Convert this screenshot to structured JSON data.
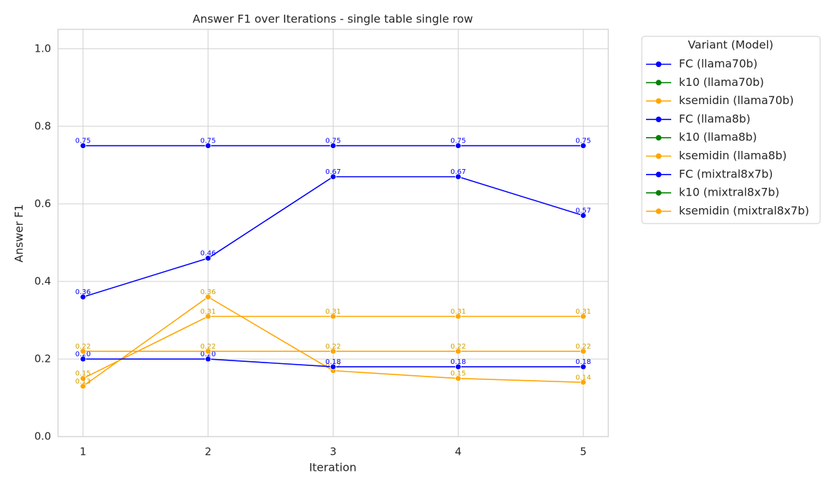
{
  "chart_data": {
    "type": "line",
    "title": "Answer F1 over Iterations - single table single row",
    "x_label": "Iteration",
    "y_label": "Answer F1",
    "x": [
      1,
      2,
      3,
      4,
      5
    ],
    "xlim": [
      0.8,
      5.2
    ],
    "xticks": [
      1,
      2,
      3,
      4,
      5
    ],
    "ylim": [
      0,
      1.05
    ],
    "yticks": [
      {
        "value": 0,
        "label": "0.0"
      },
      {
        "value": 0.2,
        "label": "0.2"
      },
      {
        "value": 0.4,
        "label": "0.4"
      },
      {
        "value": 0.6,
        "label": "0.6"
      },
      {
        "value": 0.8,
        "label": "0.8"
      },
      {
        "value": 1.0,
        "label": "1.0"
      }
    ],
    "grid": true,
    "legend_title": "Variant (Model)",
    "legend_position": "outside-right",
    "series": [
      {
        "name": "FC (llama70b)",
        "color": "#0000ff",
        "values": [
          0.75,
          0.75,
          0.75,
          0.75,
          0.75
        ],
        "value_labels": [
          "0.75",
          "0.75",
          "0.75",
          "0.75",
          "0.75"
        ]
      },
      {
        "name": "k10 (llama70b)",
        "color": "#008000",
        "values": [
          null,
          null,
          null,
          null,
          null
        ]
      },
      {
        "name": "ksemidin (llama70b)",
        "color": "#ffa500",
        "values": [
          0.15,
          0.31,
          0.31,
          0.31,
          0.31
        ],
        "value_labels": [
          "0.15",
          "0.31",
          "0.31",
          "0.31",
          "0.31"
        ]
      },
      {
        "name": "FC (llama8b)",
        "color": "#0000ff",
        "values": [
          0.36,
          0.46,
          0.67,
          0.67,
          0.57
        ],
        "value_labels": [
          "0.36",
          "0.46",
          "0.67",
          "0.67",
          "0.57"
        ]
      },
      {
        "name": "k10 (llama8b)",
        "color": "#008000",
        "values": [
          null,
          null,
          null,
          null,
          null
        ]
      },
      {
        "name": "ksemidin (llama8b)",
        "color": "#ffa500",
        "values": [
          0.13,
          0.36,
          0.17,
          0.15,
          0.14
        ],
        "value_labels": [
          "0.13",
          "0.36",
          "0.17",
          "0.15",
          "0.14"
        ]
      },
      {
        "name": "FC (mixtral8x7b)",
        "color": "#0000ff",
        "values": [
          0.2,
          0.2,
          0.18,
          0.18,
          0.18
        ],
        "value_labels": [
          "0.20",
          "0.20",
          "0.18",
          "0.18",
          "0.18"
        ]
      },
      {
        "name": "k10 (mixtral8x7b)",
        "color": "#008000",
        "values": [
          null,
          null,
          null,
          null,
          null
        ]
      },
      {
        "name": "ksemidin (mixtral8x7b)",
        "color": "#ffa500",
        "values": [
          0.22,
          0.22,
          0.22,
          0.22,
          0.22
        ],
        "value_labels": [
          "0.22",
          "0.22",
          "0.22",
          "0.22",
          "0.22"
        ]
      }
    ]
  }
}
